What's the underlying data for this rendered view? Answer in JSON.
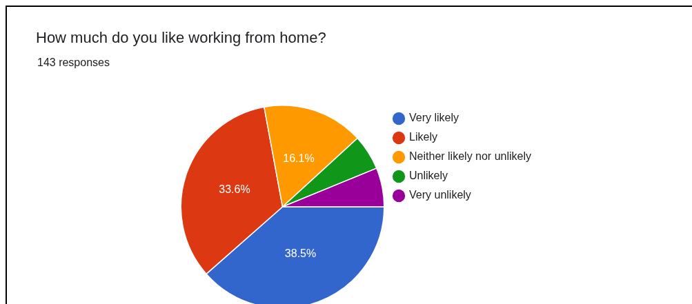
{
  "chart_data": {
    "type": "pie",
    "title": "How much do you like working from home?",
    "subtitle": "143 responses",
    "categories": [
      "Very likely",
      "Likely",
      "Neither likely nor unlikely",
      "Unlikely",
      "Very unlikely"
    ],
    "values": [
      38.5,
      33.6,
      16.1,
      5.6,
      6.2
    ],
    "colors": [
      "#3366cc",
      "#dc3912",
      "#ff9900",
      "#109618",
      "#990099"
    ],
    "value_labels": [
      "38.5%",
      "33.6%",
      "16.1%",
      null,
      null
    ],
    "legend": "right"
  }
}
